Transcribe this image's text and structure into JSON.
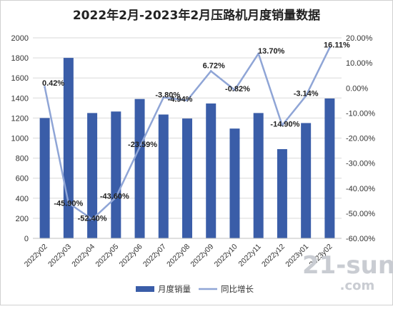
{
  "chart_data": {
    "type": "bar+line",
    "title": "2022年2月-2023年2月压路机月度销量数据",
    "categories": [
      "2022y02",
      "2022y03",
      "2022y04",
      "2022y05",
      "2022y06",
      "2022y07",
      "2022y08",
      "2022y09",
      "2022y10",
      "2022y11",
      "2022y12",
      "2023y01",
      "2023y02"
    ],
    "series": [
      {
        "name": "月度销量",
        "type": "bar",
        "axis": "left",
        "values": [
          1200,
          1800,
          1250,
          1265,
          1390,
          1235,
          1195,
          1345,
          1095,
          1250,
          890,
          1150,
          1395
        ]
      },
      {
        "name": "同比增长",
        "type": "line",
        "axis": "right",
        "values": [
          0.42,
          -45.9,
          -52.4,
          -43.6,
          -23.59,
          -3.8,
          -4.94,
          6.72,
          -0.82,
          13.7,
          -14.9,
          -3.14,
          16.11
        ],
        "labels": [
          "0.42%",
          "-45.90%",
          "-52.40%",
          "-43.60%",
          "-23.59%",
          "-3.80%",
          "-4.94%",
          "6.72%",
          "-0.82%",
          "13.70%",
          "-14.90%",
          "-3.14%",
          "16.11%"
        ]
      }
    ],
    "ylim_left": [
      0,
      2000
    ],
    "yticks_left": [
      "0",
      "200",
      "400",
      "600",
      "800",
      "1000",
      "1200",
      "1400",
      "1600",
      "1800",
      "2000"
    ],
    "ylim_right": [
      -60,
      20
    ],
    "yticks_right": [
      "-60.00%",
      "-50.00%",
      "-40.00%",
      "-30.00%",
      "-20.00%",
      "-10.00%",
      "0.00%",
      "10.00%",
      "20.00%"
    ],
    "legend_position": "bottom",
    "grid": true,
    "colors": {
      "bar": "#3a5da8",
      "line": "#8fa5d6",
      "grid": "#d9d9d9"
    }
  },
  "watermark": "21-sun.com"
}
